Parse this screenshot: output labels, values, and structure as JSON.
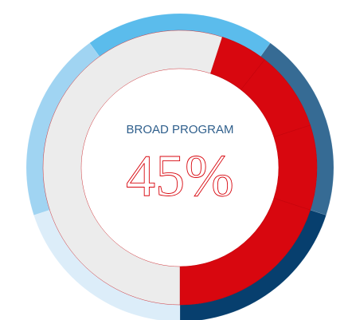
{
  "chart_data": {
    "type": "donut",
    "title": "BROAD PROGRAM",
    "value": 45,
    "value_label": "45%",
    "rings": [
      {
        "values": [
          20,
          20,
          20,
          20,
          20
        ],
        "colors": [
          "#5bbcec",
          "#366b94",
          "#073f6e",
          "#dcedf9",
          "#a0d4f2"
        ]
      },
      {
        "values": [
          5.6,
          9.4,
          10,
          20,
          55
        ],
        "colors": [
          "#d8070f",
          "#d8070f",
          "#d8070f",
          "#d8070f",
          "#ececec"
        ]
      }
    ]
  }
}
